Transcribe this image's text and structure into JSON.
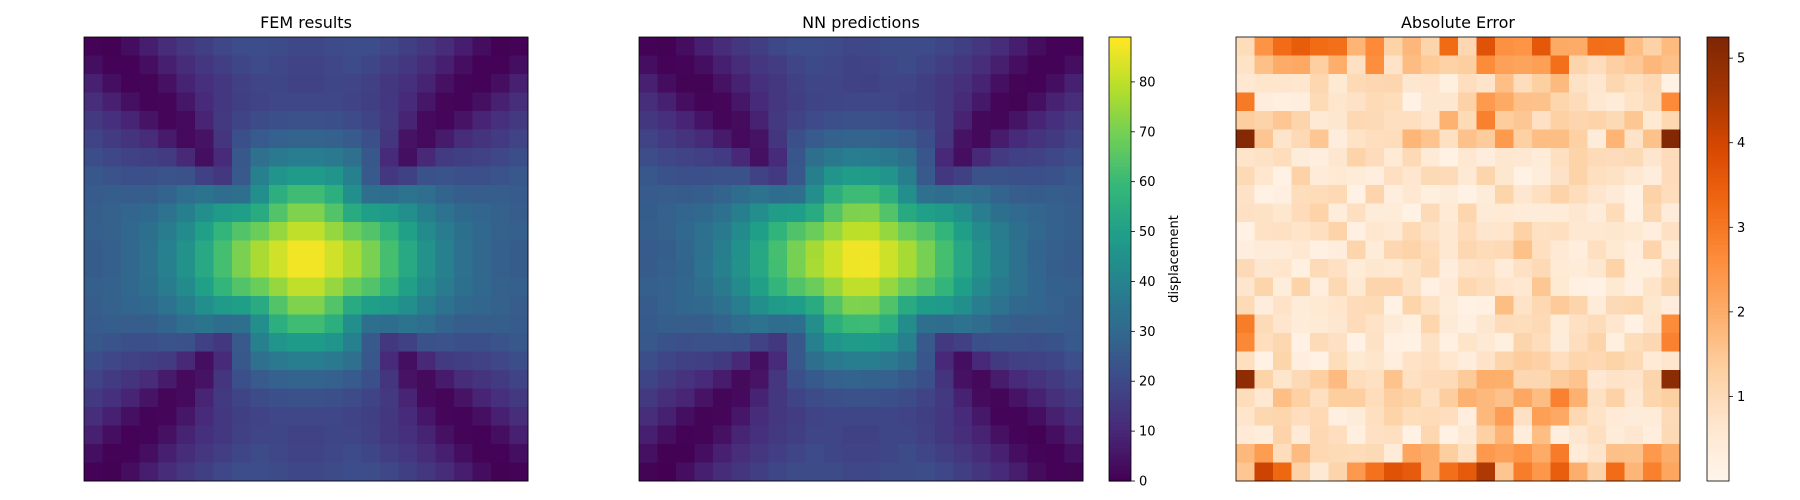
{
  "chart_data": [
    {
      "type": "heatmap",
      "title": "FEM results",
      "grid": [
        24,
        24
      ],
      "colormap": "viridis",
      "value_range": [
        0,
        89
      ],
      "field": "u = 89*exp(-((x-11.5)^2)/55 - ((y-11.5)^2)/32) + 30*max(0,cos(pi*(x-11.5)/11.5))^0 * edge-band ridges; minimum ~0 along the two diagonals, peak 89 at the center",
      "xticks": [],
      "yticks": [],
      "legend": "none",
      "grid_lines": false
    },
    {
      "type": "heatmap",
      "title": "NN predictions",
      "grid": [
        24,
        24
      ],
      "colormap": "viridis",
      "value_range": [
        0,
        89
      ],
      "field": "same pattern as FEM results",
      "xticks": [],
      "yticks": [],
      "legend": "none",
      "grid_lines": false,
      "colorbar": {
        "label": "displacement",
        "ticks": [
          0,
          10,
          20,
          30,
          40,
          50,
          60,
          70,
          80
        ],
        "range": [
          0,
          89
        ]
      }
    },
    {
      "type": "heatmap",
      "title": "Absolute Error",
      "grid": [
        24,
        24
      ],
      "colormap": "Oranges",
      "value_range": [
        0,
        5.25
      ],
      "field": "values mostly 0.1-1.5, larger (2-5) near the top and bottom edges and at left/right edge rows 5 and 18",
      "xticks": [],
      "yticks": [],
      "legend": "none",
      "grid_lines": false,
      "colorbar": {
        "label": "",
        "ticks": [
          1,
          2,
          3,
          4,
          5
        ],
        "range": [
          0,
          5.25
        ]
      }
    }
  ],
  "colors": {
    "viridis": [
      "#440154",
      "#482878",
      "#3e4989",
      "#31688e",
      "#26828e",
      "#1f9e89",
      "#35b779",
      "#6ece58",
      "#b5de2b",
      "#fde725"
    ],
    "oranges": [
      "#fff5eb",
      "#fee6ce",
      "#fdd0a2",
      "#fdae6b",
      "#fd8d3c",
      "#f16913",
      "#d94801",
      "#a63603",
      "#7f2704"
    ]
  }
}
